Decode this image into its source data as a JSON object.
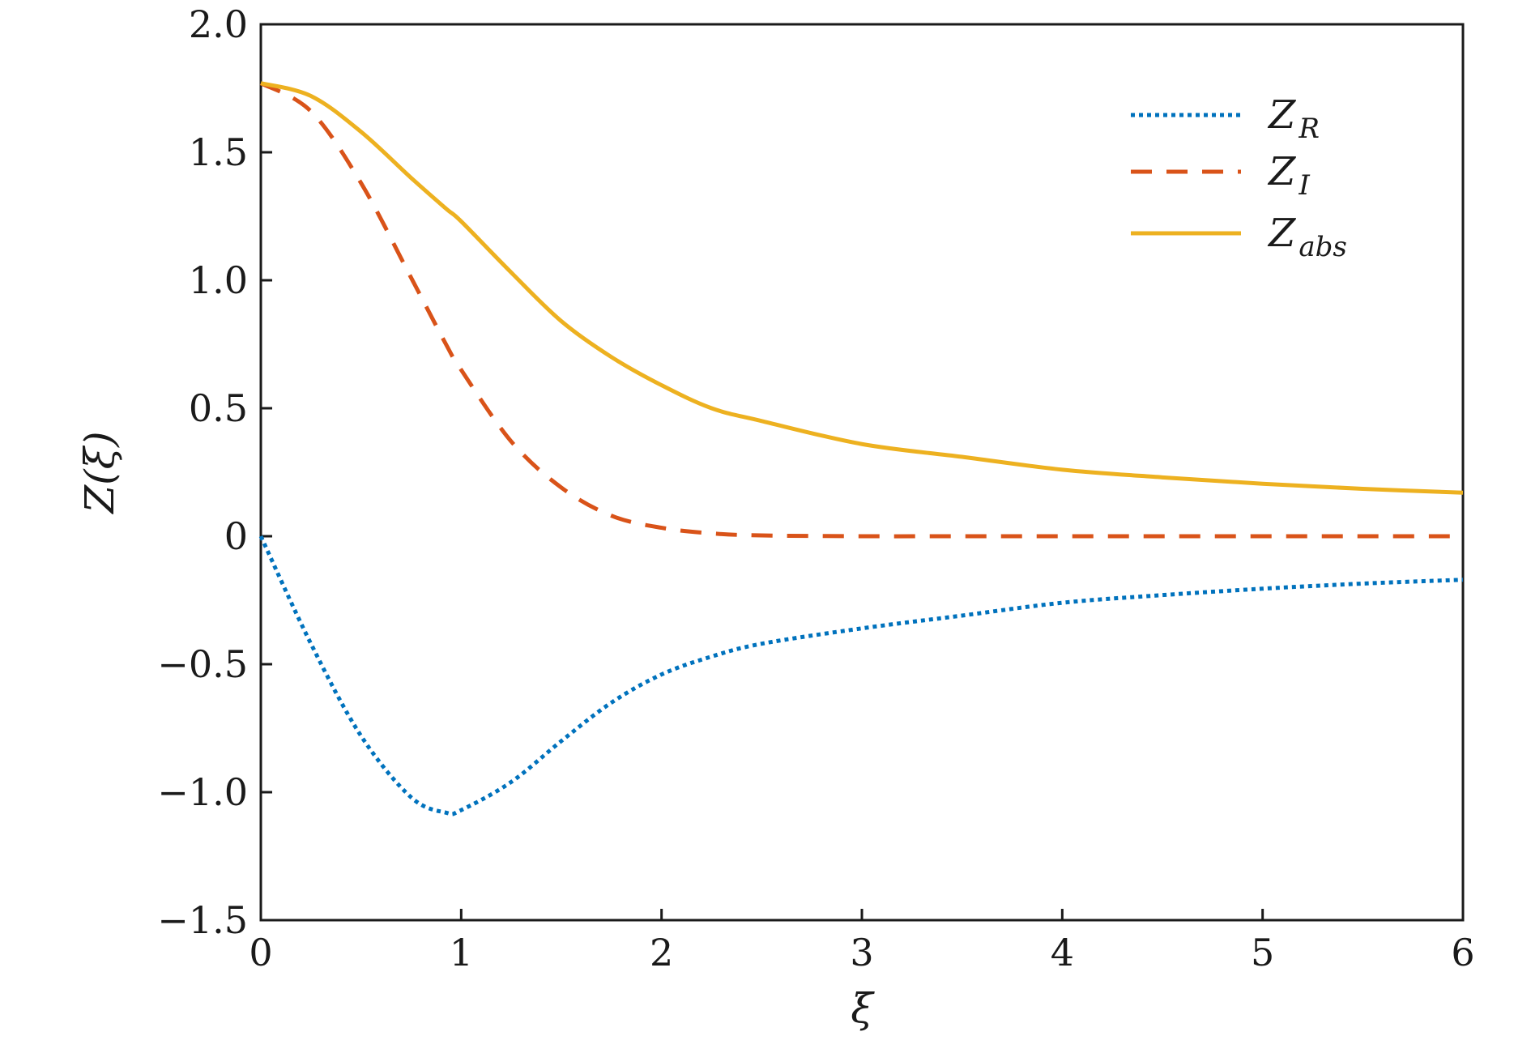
{
  "chart_data": {
    "type": "line",
    "xlabel": "ξ",
    "ylabel": "Z(ξ)",
    "xlim": [
      0,
      6
    ],
    "ylim": [
      -1.5,
      2.0
    ],
    "x_ticks": [
      0,
      1,
      2,
      3,
      4,
      5,
      6
    ],
    "x_tick_labels": [
      "0",
      "1",
      "2",
      "3",
      "4",
      "5",
      "6"
    ],
    "y_ticks": [
      -1.5,
      -1.0,
      -0.5,
      0,
      0.5,
      1.0,
      1.5,
      2.0
    ],
    "y_tick_labels": [
      "−1.5",
      "−1.0",
      "−0.5",
      "0",
      "0.5",
      "1.0",
      "1.5",
      "2.0"
    ],
    "grid": false,
    "legend_position": "top-right",
    "x": [
      0,
      0.25,
      0.5,
      0.75,
      0.924,
      1.0,
      1.25,
      1.5,
      1.75,
      2.0,
      2.25,
      2.5,
      3.0,
      3.5,
      4.0,
      4.5,
      5.0,
      5.5,
      6.0
    ],
    "series": [
      {
        "name": "Z_R",
        "label_main": "Z",
        "label_sub": "R",
        "color": "#0072BD",
        "style": "dotted",
        "values": [
          0,
          -0.42,
          -0.78,
          -1.02,
          -1.08,
          -1.07,
          -0.96,
          -0.8,
          -0.65,
          -0.54,
          -0.47,
          -0.42,
          -0.36,
          -0.31,
          -0.26,
          -0.23,
          -0.205,
          -0.185,
          -0.17
        ]
      },
      {
        "name": "Z_I",
        "label_main": "Z",
        "label_sub": "I",
        "color": "#D95319",
        "style": "dashed",
        "values": [
          1.77,
          1.66,
          1.38,
          1.01,
          0.75,
          0.65,
          0.37,
          0.19,
          0.08,
          0.033,
          0.011,
          0.003,
          0.0,
          0.0,
          0.0,
          0.0,
          0.0,
          0.0,
          0.0
        ]
      },
      {
        "name": "Z_abs",
        "label_main": "Z",
        "label_sub": "abs",
        "color": "#EDB120",
        "style": "solid",
        "values": [
          1.77,
          1.72,
          1.58,
          1.4,
          1.28,
          1.23,
          1.03,
          0.84,
          0.7,
          0.59,
          0.5,
          0.45,
          0.36,
          0.31,
          0.26,
          0.23,
          0.205,
          0.185,
          0.17
        ]
      }
    ]
  }
}
